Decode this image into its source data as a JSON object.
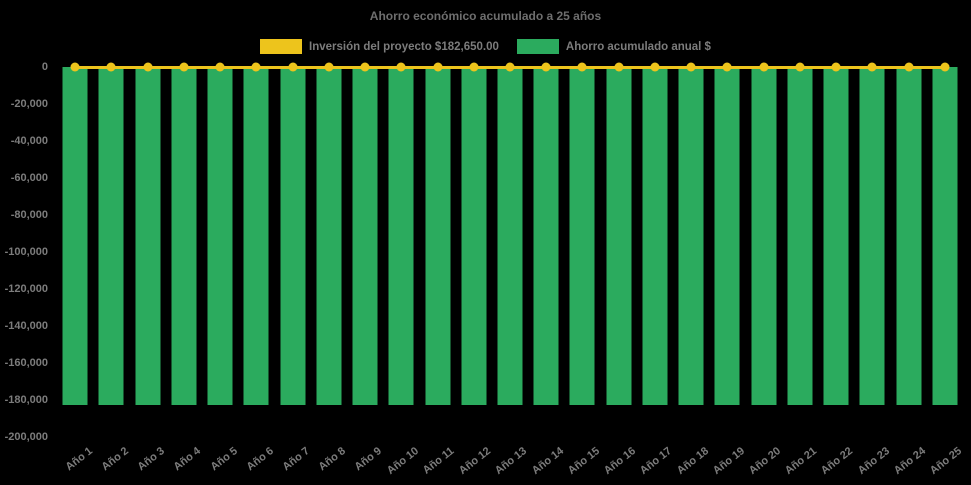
{
  "title": "Ahorro económico acumulado a 25 años",
  "legend": [
    {
      "label": "Inversión del proyecto $182,650.00",
      "color": "#EDC41C"
    },
    {
      "label": "Ahorro acumulado anual $",
      "color": "#2BAB5E"
    }
  ],
  "colors": {
    "background": "#000000",
    "bar": "#2BAB5E",
    "line": "#EDC41C",
    "title_text": "#6E6E6E",
    "axis_text": "#7C7C7C"
  },
  "chart_data": {
    "type": "bar",
    "title": "Ahorro económico acumulado a 25 años",
    "categories": [
      "Año 1",
      "Año 2",
      "Año 3",
      "Año 4",
      "Año 5",
      "Año 6",
      "Año 7",
      "Año 8",
      "Año 9",
      "Año 10",
      "Año 11",
      "Año 12",
      "Año 13",
      "Año 14",
      "Año 15",
      "Año 16",
      "Año 17",
      "Año 18",
      "Año 19",
      "Año 20",
      "Año 21",
      "Año 22",
      "Año 23",
      "Año 24",
      "Año 25"
    ],
    "series": [
      {
        "name": "Inversión del proyecto $182,650.00",
        "type": "line",
        "color": "#EDC41C",
        "marker": "circle",
        "values": [
          0,
          0,
          0,
          0,
          0,
          0,
          0,
          0,
          0,
          0,
          0,
          0,
          0,
          0,
          0,
          0,
          0,
          0,
          0,
          0,
          0,
          0,
          0,
          0,
          0
        ]
      },
      {
        "name": "Ahorro acumulado anual $",
        "type": "bar",
        "color": "#2BAB5E",
        "values": [
          -182650,
          -182650,
          -182650,
          -182650,
          -182650,
          -182650,
          -182650,
          -182650,
          -182650,
          -182650,
          -182650,
          -182650,
          -182650,
          -182650,
          -182650,
          -182650,
          -182650,
          -182650,
          -182650,
          -182650,
          -182650,
          -182650,
          -182650,
          -182650,
          -182650
        ]
      }
    ],
    "xlabel": "",
    "ylabel": "",
    "ylim": [
      -200000,
      0
    ],
    "yticks": [
      0,
      -20000,
      -40000,
      -60000,
      -80000,
      -100000,
      -120000,
      -140000,
      -160000,
      -180000,
      -200000
    ],
    "ytick_labels": [
      "0",
      "-20,000",
      "-40,000",
      "-60,000",
      "-80,000",
      "-100,000",
      "-120,000",
      "-140,000",
      "-160,000",
      "-180,000",
      "-200,000"
    ],
    "grid": false,
    "legend_position": "top",
    "background": "#000000"
  }
}
